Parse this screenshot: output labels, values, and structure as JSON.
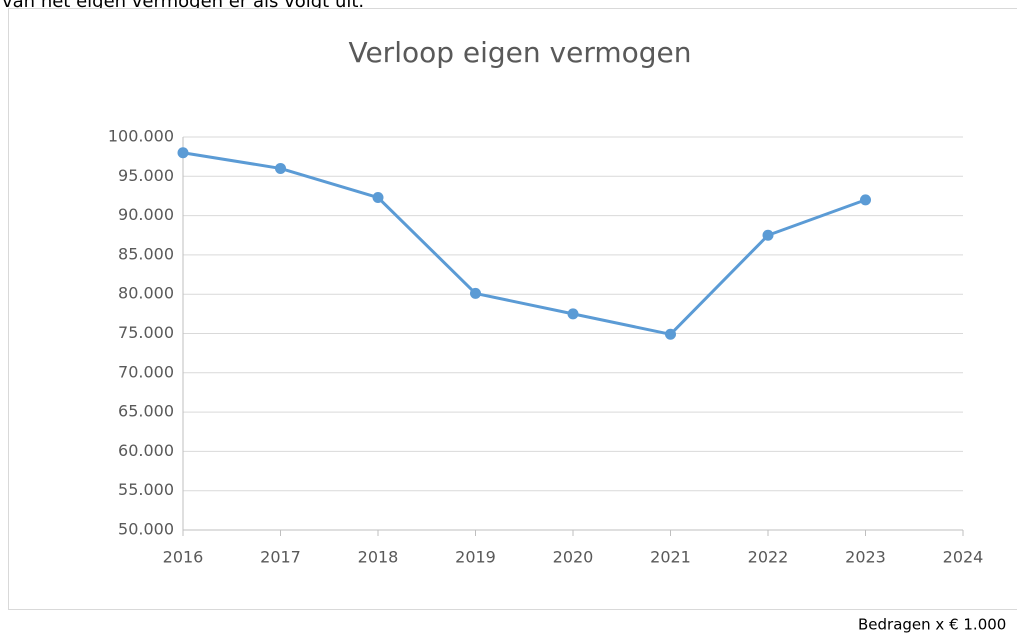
{
  "intro": "van het eigen vermogen er als volgt uit.",
  "footnote": "Bedragen x € 1.000",
  "chart_data": {
    "type": "line",
    "title": "Verloop eigen vermogen",
    "x": [
      2016,
      2017,
      2018,
      2019,
      2020,
      2021,
      2022,
      2023
    ],
    "series": [
      {
        "name": "Eigen vermogen",
        "color": "#5b9bd5",
        "values": [
          98000,
          96000,
          92300,
          80100,
          77500,
          74900,
          87500,
          92000
        ]
      }
    ],
    "xlim": [
      2016,
      2024
    ],
    "xticks": [
      2016,
      2017,
      2018,
      2019,
      2020,
      2021,
      2022,
      2023,
      2024
    ],
    "ylim": [
      50000,
      100000
    ],
    "yticks": [
      {
        "value": 50000,
        "label": "50.000"
      },
      {
        "value": 55000,
        "label": "55.000"
      },
      {
        "value": 60000,
        "label": "60.000"
      },
      {
        "value": 65000,
        "label": "65.000"
      },
      {
        "value": 70000,
        "label": "70.000"
      },
      {
        "value": 75000,
        "label": "75.000"
      },
      {
        "value": 80000,
        "label": "80.000"
      },
      {
        "value": 85000,
        "label": "85.000"
      },
      {
        "value": 90000,
        "label": "90.000"
      },
      {
        "value": 95000,
        "label": "95.000"
      },
      {
        "value": 100000,
        "label": "100.000"
      }
    ],
    "grid": true
  }
}
